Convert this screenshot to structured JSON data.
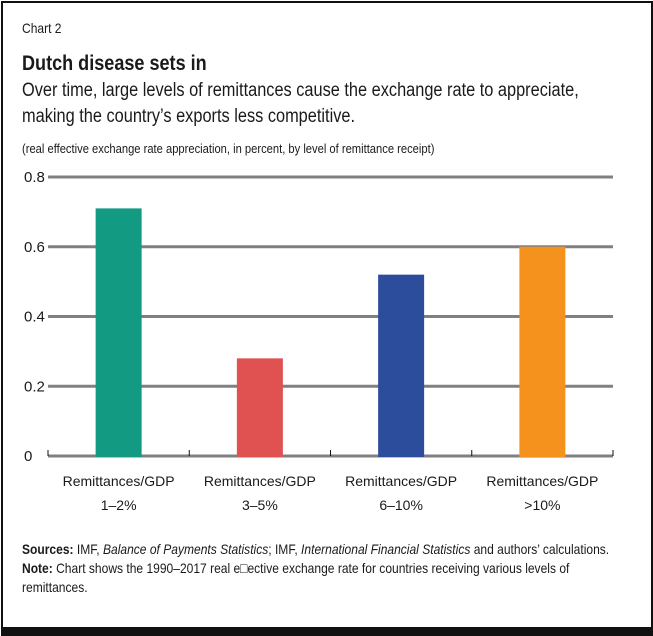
{
  "header": {
    "chart_number": "Chart 2",
    "title": "Dutch disease sets in",
    "subtitle": "Over time, large levels of remittances cause the exchange rate to appreciate, making the country’s exports less competitive.",
    "units": "(real effective exchange rate appreciation, in percent, by level of remittance receipt)"
  },
  "footer": {
    "sources_label": "Sources:",
    "sources_part1": " IMF, ",
    "sources_italic1": "Balance of Payments Statistics",
    "sources_part2": "; IMF, ",
    "sources_italic2": "International Financial Statistics",
    "sources_part3": " and authors’ calculations.",
    "note_label": "Note:",
    "note_text": " Chart shows the 1990–2017 real e□ective exchange rate for countries receiving various levels of remittances."
  },
  "chart_data": {
    "type": "bar",
    "title": "Dutch disease sets in",
    "subtitle": "Over time, large levels of remittances cause the exchange rate to appreciate, making the country’s exports less competitive.",
    "xlabel": "",
    "ylabel": "real effective exchange rate appreciation, in percent",
    "categories": [
      [
        "Remittances/GDP",
        "1–2%"
      ],
      [
        "Remittances/GDP",
        "3–5%"
      ],
      [
        "Remittances/GDP",
        "6–10%"
      ],
      [
        "Remittances/GDP",
        ">10%"
      ]
    ],
    "values": [
      0.71,
      0.28,
      0.52,
      0.6
    ],
    "colors": [
      "#129a83",
      "#e05252",
      "#2c4c9c",
      "#f5921e"
    ],
    "ylim": [
      0,
      0.8
    ],
    "yticks": [
      0,
      0.2,
      0.4,
      0.6,
      0.8
    ],
    "ytick_labels": [
      "0",
      "0.2",
      "0.4",
      "0.6",
      "0.8"
    ],
    "grid": true,
    "grid_color": "#808080",
    "legend": "none"
  }
}
